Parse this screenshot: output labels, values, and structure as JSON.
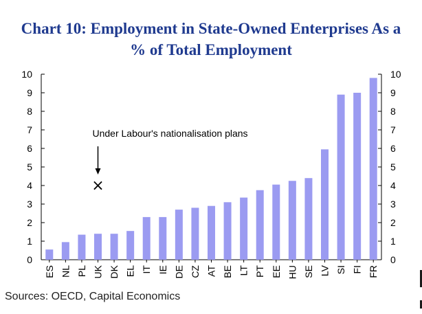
{
  "title_line1": "Chart 10: Employment in State-Owned Enterprises As a",
  "title_line2": "% of Total Employment",
  "source": "Sources: OECD, Capital Economics",
  "colors": {
    "bar": "#9b9bf1",
    "title": "#1f3a8f",
    "axis": "#000000"
  },
  "chart_data": {
    "type": "bar",
    "title": "Chart 10: Employment in State-Owned Enterprises As a % of Total Employment",
    "categories": [
      "ES",
      "NL",
      "PL",
      "UK",
      "DK",
      "EL",
      "IT",
      "IE",
      "DE",
      "CZ",
      "AT",
      "BE",
      "LT",
      "PT",
      "EE",
      "HU",
      "SE",
      "LV",
      "SI",
      "FI",
      "FR"
    ],
    "values": [
      0.55,
      0.95,
      1.35,
      1.4,
      1.4,
      1.55,
      2.3,
      2.3,
      2.7,
      2.8,
      2.9,
      3.1,
      3.35,
      3.75,
      4.05,
      4.25,
      4.4,
      5.95,
      8.9,
      9.0,
      9.8
    ],
    "ylim": [
      0,
      10
    ],
    "yticks": [
      0,
      1,
      2,
      3,
      4,
      5,
      6,
      7,
      8,
      9,
      10
    ],
    "secondary_y_axis": true,
    "grid": false,
    "annotation": {
      "text": "Under Labour's nationalisation plans",
      "category": "UK",
      "value": 4,
      "marker": "×"
    }
  }
}
